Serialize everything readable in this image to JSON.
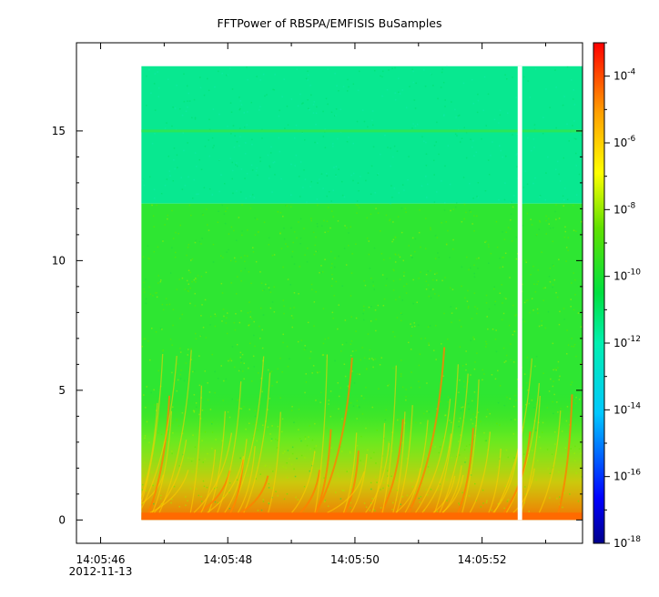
{
  "chart_data": {
    "type": "heatmap",
    "title": "FFTPower of RBSPA/EMFISIS  BuSamples",
    "xlabel": "",
    "ylabel": "",
    "x_ticks": [
      "14:05:46",
      "14:05:48",
      "14:05:50",
      "14:05:52"
    ],
    "x_tick_date": "2012-11-13",
    "x_range": [
      "14:05:45.62",
      "14:05:53.58"
    ],
    "data_x_range": [
      "14:05:46.64",
      "14:05:53.58"
    ],
    "data_gap": [
      "14:05:52.56",
      "14:05:52.63"
    ],
    "y_ticks": [
      0,
      5,
      10,
      15
    ],
    "ylim": [
      -0.9,
      18.4
    ],
    "data_y_range": [
      0,
      17.5
    ],
    "colorbar": {
      "scale": "log",
      "range": [
        1e-18,
        0.001
      ],
      "tick_labels": [
        {
          "base": "10",
          "exp": "-4",
          "value": 0.0001
        },
        {
          "base": "10",
          "exp": "-6",
          "value": 1e-06
        },
        {
          "base": "10",
          "exp": "-8",
          "value": 1e-08
        },
        {
          "base": "10",
          "exp": "-10",
          "value": 1e-10
        },
        {
          "base": "10",
          "exp": "-12",
          "value": 1e-12
        },
        {
          "base": "10",
          "exp": "-14",
          "value": 1e-14
        },
        {
          "base": "10",
          "exp": "-16",
          "value": 1e-16
        },
        {
          "base": "10",
          "exp": "-18",
          "value": 1e-18
        }
      ],
      "colors": [
        "#00008b",
        "#0000ff",
        "#00c8ff",
        "#00f0b0",
        "#00e040",
        "#60e000",
        "#ffff00",
        "#ffa000",
        "#ff0000"
      ]
    },
    "features": {
      "background_level_below": 1e-10,
      "background_level_above": 1e-12,
      "band_edge": 12.2,
      "line_level": 15.0
    },
    "grid": false,
    "legend": "colorbar-right"
  }
}
